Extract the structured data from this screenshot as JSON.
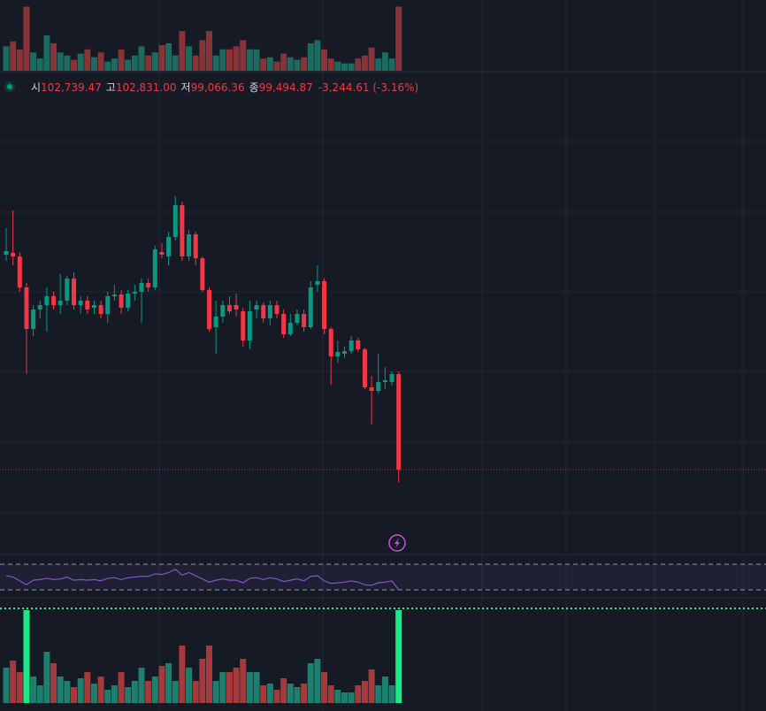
{
  "legend": {
    "items": [
      {
        "label": "시",
        "value": "102,739.47"
      },
      {
        "label": "고",
        "value": "102,831.00"
      },
      {
        "label": "저",
        "value": "99,066.36"
      },
      {
        "label": "종",
        "value": "99,494.87"
      }
    ],
    "change": "-3,244.61 (-3.16%)"
  },
  "chart_data": {
    "type": "candlestick",
    "ylim": [
      96680,
      115430
    ],
    "up_color": "#089981",
    "down_color": "#f23645",
    "ohlc": [
      [
        106790,
        107690,
        106580,
        106910
      ],
      [
        106850,
        108290,
        106430,
        106730
      ],
      [
        106730,
        106880,
        105530,
        105680
      ],
      [
        105680,
        105830,
        102740,
        104270
      ],
      [
        104270,
        105080,
        104030,
        104930
      ],
      [
        104930,
        105230,
        104630,
        105080
      ],
      [
        105080,
        105680,
        104180,
        105380
      ],
      [
        105380,
        105530,
        104930,
        105080
      ],
      [
        105080,
        106130,
        104780,
        105230
      ],
      [
        105230,
        106070,
        105080,
        105980
      ],
      [
        105980,
        106190,
        104930,
        105080
      ],
      [
        105080,
        105380,
        104780,
        105230
      ],
      [
        105230,
        105380,
        104780,
        104930
      ],
      [
        104990,
        105230,
        104780,
        105080
      ],
      [
        105080,
        105230,
        104630,
        104780
      ],
      [
        104780,
        105530,
        104480,
        105380
      ],
      [
        105380,
        105770,
        105230,
        105440
      ],
      [
        105440,
        105590,
        104780,
        104990
      ],
      [
        104990,
        105590,
        104870,
        105470
      ],
      [
        105470,
        105770,
        105230,
        105530
      ],
      [
        105530,
        105980,
        104480,
        105830
      ],
      [
        105830,
        105980,
        105530,
        105680
      ],
      [
        105680,
        107090,
        105590,
        106970
      ],
      [
        106880,
        107180,
        106670,
        106790
      ],
      [
        106730,
        107570,
        106430,
        107390
      ],
      [
        107390,
        108770,
        107270,
        108470
      ],
      [
        108470,
        108590,
        106580,
        106730
      ],
      [
        106730,
        107630,
        106580,
        107480
      ],
      [
        107480,
        107570,
        106430,
        106670
      ],
      [
        106670,
        106730,
        105530,
        105590
      ],
      [
        105590,
        105680,
        104180,
        104270
      ],
      [
        104330,
        105230,
        103430,
        104690
      ],
      [
        104690,
        105230,
        104480,
        105080
      ],
      [
        105080,
        105380,
        104780,
        104870
      ],
      [
        105080,
        105470,
        104690,
        104930
      ],
      [
        104870,
        104990,
        103670,
        103880
      ],
      [
        103880,
        105230,
        103580,
        104870
      ],
      [
        104930,
        105230,
        104630,
        105080
      ],
      [
        105080,
        105170,
        104480,
        104630
      ],
      [
        104630,
        105230,
        104390,
        105080
      ],
      [
        105080,
        105230,
        104630,
        104780
      ],
      [
        104780,
        104930,
        103970,
        104090
      ],
      [
        104090,
        104780,
        104030,
        104480
      ],
      [
        104480,
        104930,
        104390,
        104780
      ],
      [
        104780,
        104930,
        104180,
        104330
      ],
      [
        104330,
        105890,
        104270,
        105680
      ],
      [
        105770,
        106430,
        105530,
        105890
      ],
      [
        105890,
        105980,
        104090,
        104270
      ],
      [
        104270,
        104330,
        102380,
        103340
      ],
      [
        103340,
        103880,
        103130,
        103490
      ],
      [
        103430,
        103670,
        103280,
        103520
      ],
      [
        103520,
        104030,
        103430,
        103880
      ],
      [
        103880,
        103970,
        103490,
        103580
      ],
      [
        103580,
        103640,
        102230,
        102290
      ],
      [
        102290,
        102680,
        101030,
        102170
      ],
      [
        102170,
        103430,
        102080,
        102470
      ],
      [
        102470,
        102980,
        102230,
        102530
      ],
      [
        102470,
        102830,
        102350,
        102740
      ],
      [
        102739.47,
        102831,
        99066.36,
        99494.87
      ]
    ],
    "volume": {
      "values": [
        40,
        48,
        35,
        105,
        30,
        20,
        58,
        45,
        30,
        25,
        18,
        28,
        35,
        22,
        30,
        15,
        20,
        35,
        18,
        25,
        40,
        25,
        30,
        42,
        45,
        25,
        65,
        40,
        25,
        50,
        65,
        25,
        35,
        35,
        40,
        50,
        35,
        35,
        20,
        22,
        15,
        28,
        22,
        18,
        22,
        45,
        50,
        35,
        20,
        15,
        12,
        12,
        20,
        25,
        38,
        20,
        30,
        20,
        105
      ],
      "ylim": [
        0,
        110
      ],
      "up_color": "#1e7f6e",
      "down_color": "#a53a3d",
      "highlight": [
        3,
        58
      ],
      "highlight_color": "#1de986"
    },
    "rsi": {
      "values": [
        52,
        50,
        44,
        38,
        45,
        46,
        48,
        46,
        47,
        50,
        45,
        46,
        45,
        46,
        44,
        48,
        49,
        46,
        49,
        50,
        51,
        51,
        55,
        54,
        57,
        62,
        53,
        57,
        52,
        47,
        42,
        45,
        47,
        45,
        45,
        41,
        48,
        49,
        46,
        49,
        47,
        43,
        45,
        47,
        44,
        51,
        52,
        44,
        40,
        41,
        42,
        44,
        42,
        38,
        37,
        41,
        42,
        44,
        30
      ],
      "ylim": [
        0,
        100
      ],
      "levels": [
        70,
        30
      ],
      "color": "#7e57c2"
    }
  }
}
